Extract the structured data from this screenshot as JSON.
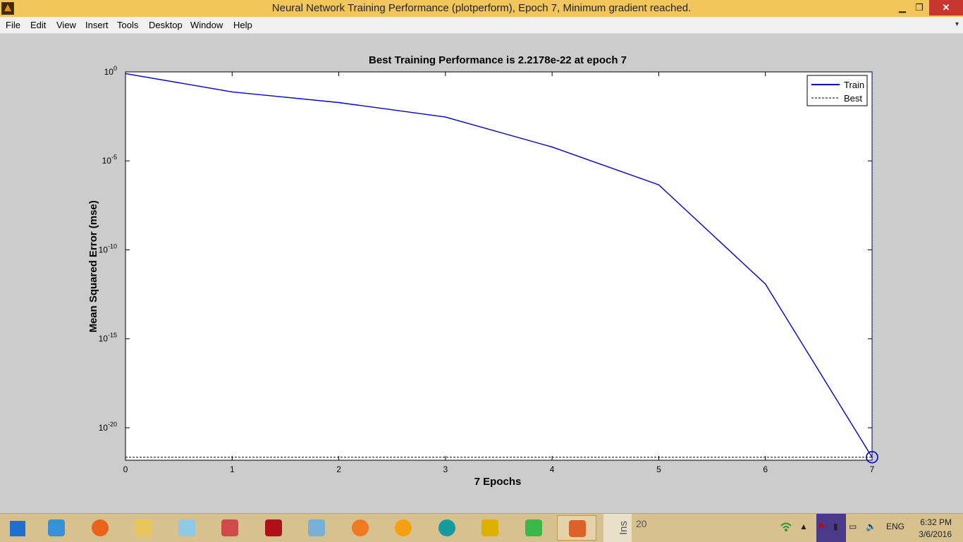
{
  "window": {
    "title": "Neural Network Training Performance (plotperform), Epoch 7, Minimum gradient reached.",
    "controls": {
      "minimize": "▁",
      "maximize": "❐",
      "close": "✕"
    }
  },
  "menu": {
    "items": [
      "File",
      "Edit",
      "View",
      "Insert",
      "Tools",
      "Desktop",
      "Window",
      "Help"
    ],
    "overflow": "▾"
  },
  "chart_data": {
    "type": "line",
    "title": "Best Training Performance is 2.2178e-22 at epoch 7",
    "xlabel": "7 Epochs",
    "ylabel": "Mean Squared Error  (mse)",
    "x_scale": "linear",
    "y_scale": "log",
    "xlim": [
      0,
      7
    ],
    "ylim": [
      1.5e-22,
      1
    ],
    "x_ticks": [
      "0",
      "1",
      "2",
      "3",
      "4",
      "5",
      "6",
      "7"
    ],
    "y_ticks": [
      {
        "base": "10",
        "exp": "0",
        "value": 1
      },
      {
        "base": "10",
        "exp": "-5",
        "value": 1e-05
      },
      {
        "base": "10",
        "exp": "-10",
        "value": 1e-10
      },
      {
        "base": "10",
        "exp": "-15",
        "value": 1e-15
      },
      {
        "base": "10",
        "exp": "-20",
        "value": 1e-20
      }
    ],
    "series": [
      {
        "name": "Train",
        "style": "solid",
        "color": "#0000cc",
        "x": [
          0,
          1,
          2,
          3,
          4,
          5,
          6,
          7
        ],
        "y": [
          0.8,
          0.075,
          0.019,
          0.0029,
          6e-05,
          4.5e-07,
          1.2e-12,
          2.2178e-22
        ]
      }
    ],
    "best": {
      "name": "Best",
      "style": "dashed",
      "color": "#000000",
      "epoch": 7,
      "value": 2.2178e-22,
      "marker": "circle"
    },
    "legend": {
      "position": "top-right",
      "entries": [
        "Train",
        "Best"
      ]
    },
    "grid": false
  },
  "taskbar": {
    "apps": [
      {
        "name": "start-button",
        "color": "#1e6fd1"
      },
      {
        "name": "search-app-icon",
        "color": "#3a8fd9"
      },
      {
        "name": "firefox-icon",
        "color": "#e8641a"
      },
      {
        "name": "file-explorer-icon",
        "color": "#e8c55a"
      },
      {
        "name": "sticky-notes-icon",
        "color": "#8fc9e8"
      },
      {
        "name": "snipping-tool-icon",
        "color": "#d04a4a"
      },
      {
        "name": "pdf-reader-icon",
        "color": "#b0101a"
      },
      {
        "name": "notepad-icon",
        "color": "#7ab0d8"
      },
      {
        "name": "uc-browser-icon",
        "color": "#f07a20"
      },
      {
        "name": "media-player-icon",
        "color": "#f5a010"
      },
      {
        "name": "arduino-icon",
        "color": "#159aa0"
      },
      {
        "name": "banglalion-icon",
        "color": "#e0b000"
      },
      {
        "name": "wifi-hotspot-icon",
        "color": "#3cb84a"
      },
      {
        "name": "matlab-icon",
        "color": "#e0602a"
      }
    ],
    "ins_label": "Ins",
    "partial_value": "20",
    "language": "ENG",
    "clock": {
      "time": "6:32 PM",
      "date": "3/6/2016"
    }
  }
}
